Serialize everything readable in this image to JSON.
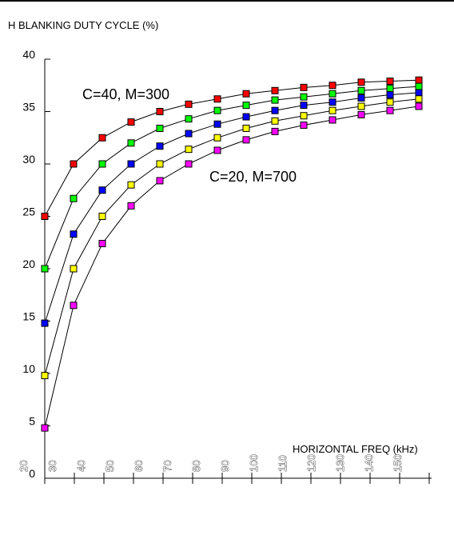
{
  "chart_data": {
    "type": "line",
    "title": "",
    "ylabel": "H BLANKING DUTY CYCLE (%)",
    "xlabel": "HORIZONTAL FREQ (kHz)",
    "ylim": [
      0,
      40
    ],
    "y_ticks": [
      "0",
      "5",
      "10",
      "15",
      "20",
      "25",
      "30",
      "35",
      "40"
    ],
    "x_ticks": [
      "20",
      "30",
      "40",
      "50",
      "60",
      "70",
      "80",
      "90",
      "100",
      "110",
      "120",
      "130",
      "140",
      "150"
    ],
    "x": [
      30,
      40,
      50,
      60,
      70,
      80,
      90,
      100,
      110,
      120,
      130,
      140,
      150,
      160
    ],
    "annotations": [
      "C=40, M=300",
      "C=20, M=700"
    ],
    "grid": false,
    "series": [
      {
        "color": "#ff0000",
        "values": [
          25,
          30,
          32.5,
          34,
          35,
          35.7,
          36.2,
          36.7,
          37,
          37.3,
          37.5,
          37.8,
          37.9,
          38
        ]
      },
      {
        "color": "#00ff00",
        "values": [
          20,
          26.7,
          30,
          32,
          33.4,
          34.3,
          35.1,
          35.6,
          36.1,
          36.4,
          36.7,
          37,
          37.2,
          37.4
        ]
      },
      {
        "color": "#0000ff",
        "values": [
          14.8,
          23.3,
          27.5,
          30,
          31.7,
          32.9,
          33.8,
          34.5,
          35.1,
          35.6,
          35.9,
          36.3,
          36.6,
          36.8
        ]
      },
      {
        "color": "#ffff00",
        "values": [
          9.8,
          20,
          25,
          28,
          30,
          31.4,
          32.5,
          33.4,
          34.1,
          34.6,
          35.1,
          35.5,
          35.9,
          36.2
        ]
      },
      {
        "color": "#ff00ff",
        "values": [
          4.8,
          16.5,
          22.4,
          26,
          28.4,
          30,
          31.3,
          32.3,
          33.1,
          33.7,
          34.2,
          34.7,
          35.1,
          35.5
        ]
      }
    ]
  }
}
